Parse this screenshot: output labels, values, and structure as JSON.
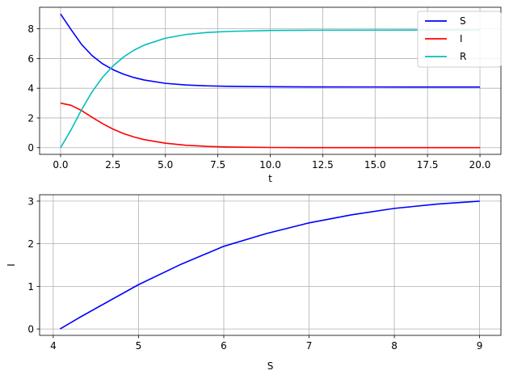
{
  "chart_data": [
    {
      "type": "line",
      "title": "",
      "xlabel": "t",
      "ylabel": "",
      "xlim": [
        -1,
        21
      ],
      "ylim": [
        -0.45,
        9.45
      ],
      "xticks": [
        0,
        2.5,
        5,
        7.5,
        10,
        12.5,
        15,
        17.5,
        20
      ],
      "xtick_labels": [
        "0.0",
        "2.5",
        "5.0",
        "7.5",
        "10.0",
        "12.5",
        "15.0",
        "17.5",
        "20.0"
      ],
      "yticks": [
        0,
        2,
        4,
        6,
        8
      ],
      "ytick_labels": [
        "0",
        "2",
        "4",
        "6",
        "8"
      ],
      "grid": true,
      "legend": "top-right",
      "series": [
        {
          "name": "S",
          "color": "#0000ff",
          "x": [
            0,
            0.5,
            1,
            1.5,
            2,
            2.5,
            3,
            3.5,
            4,
            5,
            6,
            7,
            8,
            10,
            12,
            15,
            20
          ],
          "y": [
            9.0,
            7.95,
            6.95,
            6.2,
            5.65,
            5.25,
            4.95,
            4.72,
            4.55,
            4.33,
            4.22,
            4.16,
            4.13,
            4.1,
            4.09,
            4.085,
            4.08
          ]
        },
        {
          "name": "I",
          "color": "#ff0000",
          "x": [
            0,
            0.5,
            1,
            1.5,
            2,
            2.5,
            3,
            3.5,
            4,
            5,
            6,
            7,
            8,
            10,
            12,
            15,
            20
          ],
          "y": [
            3.0,
            2.85,
            2.5,
            2.05,
            1.62,
            1.25,
            0.95,
            0.72,
            0.54,
            0.3,
            0.16,
            0.085,
            0.045,
            0.012,
            0.004,
            0.001,
            0.0
          ]
        },
        {
          "name": "R",
          "color": "#00bfbf",
          "x": [
            0,
            0.5,
            1,
            1.5,
            2,
            2.5,
            3,
            3.5,
            4,
            5,
            6,
            7,
            8,
            10,
            12,
            15,
            20
          ],
          "y": [
            0.0,
            1.2,
            2.55,
            3.75,
            4.73,
            5.5,
            6.1,
            6.56,
            6.91,
            7.37,
            7.62,
            7.755,
            7.825,
            7.888,
            7.906,
            7.914,
            7.92
          ]
        }
      ]
    },
    {
      "type": "line",
      "title": "",
      "xlabel": "S",
      "ylabel": "I",
      "xlim": [
        3.84,
        9.25
      ],
      "ylim": [
        -0.15,
        3.15
      ],
      "xticks": [
        4,
        5,
        6,
        7,
        8,
        9
      ],
      "xtick_labels": [
        "4",
        "5",
        "6",
        "7",
        "8",
        "9"
      ],
      "yticks": [
        0,
        1,
        2,
        3
      ],
      "ytick_labels": [
        "0",
        "1",
        "2",
        "3"
      ],
      "grid": true,
      "series": [
        {
          "color": "#0000ff",
          "x": [
            4.08,
            4.3,
            4.55,
            5.0,
            5.5,
            6.0,
            6.5,
            7.0,
            7.5,
            8.0,
            8.5,
            9.0
          ],
          "y": [
            0.0,
            0.26,
            0.54,
            1.04,
            1.52,
            1.94,
            2.24,
            2.49,
            2.68,
            2.83,
            2.93,
            3.0
          ]
        }
      ]
    }
  ]
}
